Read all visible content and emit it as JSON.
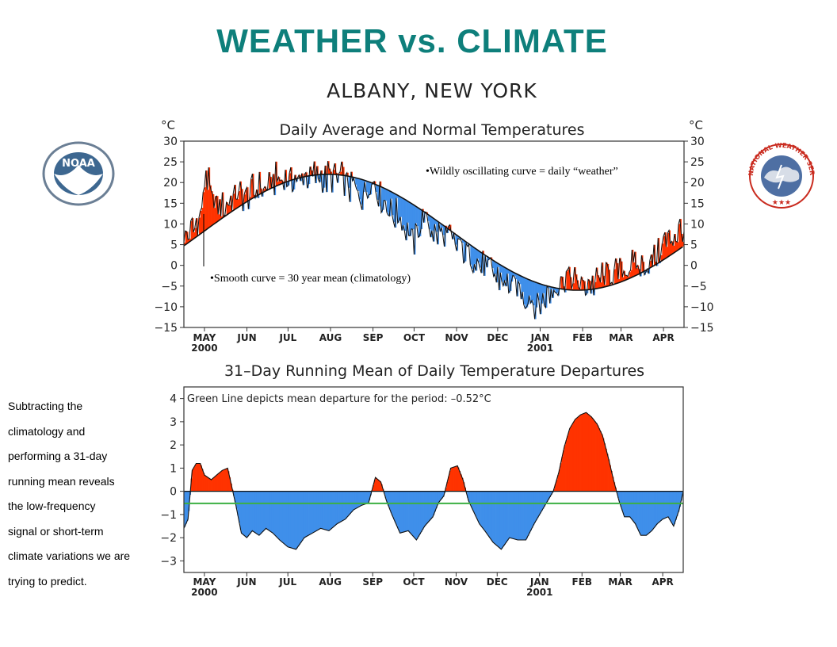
{
  "title": "WEATHER  vs.  CLIMATE",
  "logos": {
    "left": "noaa-logo",
    "right": "national-weather-service-logo"
  },
  "left_logo": {
    "text": "NOAA"
  },
  "right_logo": {
    "text": "NATIONAL WEATHER SERVICE"
  },
  "side_text_lines": [
    "Subtracting the",
    "climatology and",
    "performing a 31-day",
    "running mean reveals",
    "the low-frequency",
    "signal or short-term",
    "climate variations we are",
    "trying to predict."
  ],
  "annotations": {
    "weather": "•Wildly oscillating curve = daily “weather”",
    "climate": "•Smooth curve = 30 year mean (climatology)"
  },
  "colors": {
    "above": "#ff3300",
    "below": "#3f8fea",
    "mean_line": "#3cb043",
    "title": "#0e7f7b"
  },
  "chart_data": [
    {
      "type": "area",
      "supertitle": "ALBANY, NEW YORK",
      "title": "Daily Average and Normal Temperatures",
      "ylabel_left": "°C",
      "ylabel_right": "°C",
      "ylim": [
        -15,
        30
      ],
      "yticks": [
        30,
        25,
        20,
        15,
        10,
        5,
        0,
        -5,
        -10,
        -15
      ],
      "xlim": [
        0,
        365
      ],
      "month_ticks": [
        {
          "label": "MAY",
          "sub": "2000",
          "day": 15
        },
        {
          "label": "JUN",
          "day": 46
        },
        {
          "label": "JUL",
          "day": 76
        },
        {
          "label": "AUG",
          "day": 107
        },
        {
          "label": "SEP",
          "day": 138
        },
        {
          "label": "OCT",
          "day": 168
        },
        {
          "label": "NOV",
          "day": 199
        },
        {
          "label": "DEC",
          "day": 229
        },
        {
          "label": "JAN",
          "sub": "2001",
          "day": 260
        },
        {
          "label": "FEB",
          "day": 291
        },
        {
          "label": "MAR",
          "day": 319
        },
        {
          "label": "APR",
          "day": 350
        }
      ],
      "normal_curve": {
        "mean": 8.0,
        "amplitude": 14.0,
        "peak_day": 105
      },
      "daily_average_keypoints": [
        [
          0,
          7
        ],
        [
          6,
          9
        ],
        [
          12,
          11
        ],
        [
          16,
          22
        ],
        [
          20,
          16
        ],
        [
          30,
          14
        ],
        [
          40,
          17
        ],
        [
          50,
          18
        ],
        [
          60,
          19
        ],
        [
          70,
          21
        ],
        [
          80,
          20
        ],
        [
          90,
          22
        ],
        [
          100,
          21
        ],
        [
          110,
          21
        ],
        [
          118,
          20
        ],
        [
          125,
          18
        ],
        [
          132,
          17
        ],
        [
          138,
          21
        ],
        [
          145,
          15
        ],
        [
          152,
          13
        ],
        [
          160,
          11
        ],
        [
          168,
          6
        ],
        [
          175,
          12
        ],
        [
          183,
          8
        ],
        [
          190,
          7
        ],
        [
          200,
          5
        ],
        [
          210,
          3
        ],
        [
          220,
          -1
        ],
        [
          229,
          -3
        ],
        [
          235,
          -5
        ],
        [
          245,
          -6
        ],
        [
          255,
          -9
        ],
        [
          262,
          -8
        ],
        [
          270,
          -5
        ],
        [
          280,
          -3
        ],
        [
          290,
          -5
        ],
        [
          300,
          -4
        ],
        [
          310,
          -2
        ],
        [
          320,
          -1
        ],
        [
          330,
          0
        ],
        [
          340,
          1
        ],
        [
          350,
          5
        ],
        [
          358,
          8
        ],
        [
          365,
          9
        ]
      ]
    },
    {
      "type": "area",
      "title": "31–Day Running Mean of Daily Temperature Departures",
      "annotation": "Green Line depicts mean departure for the period: –0.52°C",
      "mean_departure": -0.52,
      "ylim": [
        -3.5,
        4.5
      ],
      "yticks": [
        4,
        3,
        2,
        1,
        0,
        -1,
        -2,
        -3
      ],
      "xlim": [
        0,
        365
      ],
      "month_ticks": [
        {
          "label": "MAY",
          "sub": "2000",
          "day": 15
        },
        {
          "label": "JUN",
          "day": 46
        },
        {
          "label": "JUL",
          "day": 76
        },
        {
          "label": "AUG",
          "day": 107
        },
        {
          "label": "SEP",
          "day": 138
        },
        {
          "label": "OCT",
          "day": 168
        },
        {
          "label": "NOV",
          "day": 199
        },
        {
          "label": "DEC",
          "day": 229
        },
        {
          "label": "JAN",
          "sub": "2001",
          "day": 260
        },
        {
          "label": "FEB",
          "day": 291
        },
        {
          "label": "MAR",
          "day": 319
        },
        {
          "label": "APR",
          "day": 350
        }
      ],
      "departure_points": [
        [
          0,
          -1.6
        ],
        [
          3,
          -1.2
        ],
        [
          6,
          0.9
        ],
        [
          9,
          1.2
        ],
        [
          12,
          1.2
        ],
        [
          15,
          0.7
        ],
        [
          20,
          0.5
        ],
        [
          24,
          0.7
        ],
        [
          28,
          0.9
        ],
        [
          32,
          1.0
        ],
        [
          35,
          0.2
        ],
        [
          38,
          -0.6
        ],
        [
          42,
          -1.8
        ],
        [
          46,
          -2.0
        ],
        [
          50,
          -1.7
        ],
        [
          55,
          -1.9
        ],
        [
          60,
          -1.6
        ],
        [
          65,
          -1.8
        ],
        [
          70,
          -2.1
        ],
        [
          76,
          -2.4
        ],
        [
          82,
          -2.5
        ],
        [
          88,
          -2.0
        ],
        [
          94,
          -1.8
        ],
        [
          100,
          -1.6
        ],
        [
          106,
          -1.7
        ],
        [
          112,
          -1.4
        ],
        [
          118,
          -1.2
        ],
        [
          124,
          -0.8
        ],
        [
          130,
          -0.6
        ],
        [
          135,
          -0.5
        ],
        [
          140,
          0.6
        ],
        [
          144,
          0.4
        ],
        [
          148,
          -0.4
        ],
        [
          152,
          -1.0
        ],
        [
          158,
          -1.8
        ],
        [
          164,
          -1.7
        ],
        [
          170,
          -2.1
        ],
        [
          176,
          -1.5
        ],
        [
          182,
          -1.1
        ],
        [
          186,
          -0.5
        ],
        [
          190,
          -0.2
        ],
        [
          195,
          1.0
        ],
        [
          200,
          1.1
        ],
        [
          204,
          0.5
        ],
        [
          208,
          -0.4
        ],
        [
          212,
          -0.9
        ],
        [
          216,
          -1.4
        ],
        [
          220,
          -1.7
        ],
        [
          226,
          -2.2
        ],
        [
          232,
          -2.5
        ],
        [
          238,
          -2.0
        ],
        [
          244,
          -2.1
        ],
        [
          250,
          -2.1
        ],
        [
          256,
          -1.4
        ],
        [
          262,
          -0.8
        ],
        [
          266,
          -0.4
        ],
        [
          270,
          0.0
        ],
        [
          274,
          0.8
        ],
        [
          278,
          1.9
        ],
        [
          282,
          2.7
        ],
        [
          286,
          3.1
        ],
        [
          290,
          3.3
        ],
        [
          294,
          3.4
        ],
        [
          298,
          3.2
        ],
        [
          302,
          2.9
        ],
        [
          306,
          2.4
        ],
        [
          310,
          1.5
        ],
        [
          314,
          0.5
        ],
        [
          318,
          -0.4
        ],
        [
          322,
          -1.1
        ],
        [
          326,
          -1.1
        ],
        [
          330,
          -1.4
        ],
        [
          334,
          -1.9
        ],
        [
          338,
          -1.9
        ],
        [
          342,
          -1.7
        ],
        [
          346,
          -1.4
        ],
        [
          350,
          -1.2
        ],
        [
          354,
          -1.1
        ],
        [
          358,
          -1.5
        ],
        [
          362,
          -0.8
        ],
        [
          365,
          0.0
        ]
      ]
    }
  ]
}
